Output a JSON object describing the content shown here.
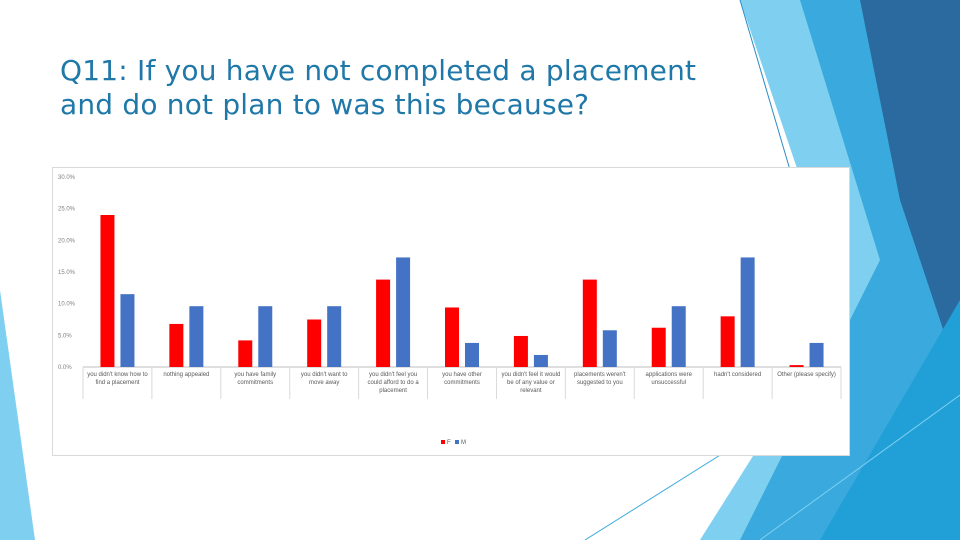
{
  "slide": {
    "title_line1": "Q11: If you have not completed a placement",
    "title_line2": "and do not plan to was this because?"
  },
  "colors": {
    "title": "#1f78a8",
    "series_f": "#ff0000",
    "series_m": "#4472c4",
    "decor_light": "#7fd0f0",
    "decor_mid": "#3aa9de",
    "decor_dark": "#2b6a9e"
  },
  "chart_data": {
    "type": "bar",
    "title": "",
    "xlabel": "",
    "ylabel": "",
    "ylim": [
      0,
      30
    ],
    "y_ticks": [
      "0.0%",
      "5.0%",
      "10.0%",
      "15.0%",
      "20.0%",
      "25.0%",
      "30.0%"
    ],
    "grid": false,
    "legend_position": "bottom",
    "categories": [
      [
        "you didn't know how to",
        "find a placement"
      ],
      [
        "nothing appealed"
      ],
      [
        "you have family",
        "commitments"
      ],
      [
        "you didn't want to",
        "move away"
      ],
      [
        "you didn't feel you",
        "could afford to do a",
        "placement"
      ],
      [
        "you have other",
        "commitments"
      ],
      [
        "you didn't feel it would",
        "be of any value or",
        "relevant"
      ],
      [
        "placements weren't",
        "suggested to you"
      ],
      [
        "applications were",
        "unsuccessful"
      ],
      [
        "hadn't considered"
      ],
      [
        "Other (please specify)"
      ]
    ],
    "series": [
      {
        "name": "F",
        "color": "#ff0000",
        "values": [
          24.0,
          6.8,
          4.2,
          7.5,
          13.8,
          9.4,
          4.9,
          13.8,
          6.2,
          8.0,
          0.3
        ]
      },
      {
        "name": "M",
        "color": "#4472c4",
        "values": [
          11.5,
          9.6,
          9.6,
          9.6,
          17.3,
          3.8,
          1.9,
          5.8,
          9.6,
          17.3,
          3.8
        ]
      }
    ]
  }
}
